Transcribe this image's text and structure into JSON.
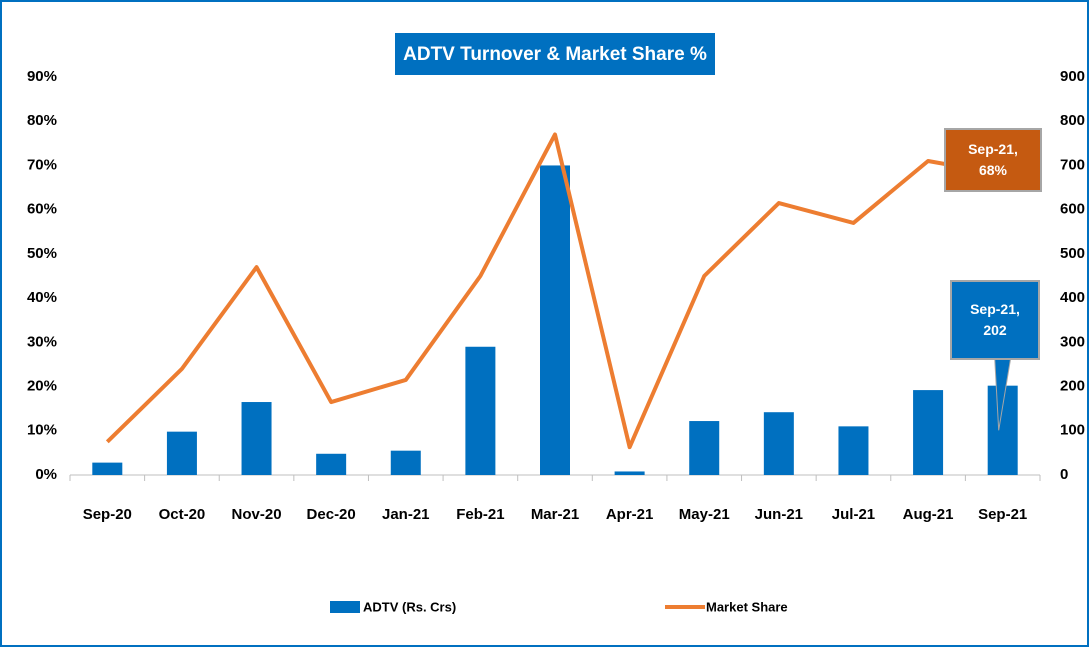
{
  "chart_data": {
    "type": "bar-line",
    "title": "ADTV Turnover & Market Share %",
    "categories": [
      "Sep-20",
      "Oct-20",
      "Nov-20",
      "Dec-20",
      "Jan-21",
      "Feb-21",
      "Mar-21",
      "Apr-21",
      "May-21",
      "Jun-21",
      "Jul-21",
      "Aug-21",
      "Sep-21"
    ],
    "series": [
      {
        "name": "ADTV (Rs. Crs)",
        "type": "bar",
        "axis": "y2",
        "color": "#0070c0",
        "values": [
          28,
          98,
          165,
          48,
          55,
          290,
          700,
          8,
          122,
          142,
          110,
          192,
          202
        ],
        "value_labels": [
          null,
          null,
          null,
          null,
          null,
          null,
          null,
          null,
          null,
          null,
          null,
          null,
          "Sep-21, 202"
        ]
      },
      {
        "name": "Market Share",
        "type": "line",
        "axis": "y",
        "color": "#ed7d31",
        "values": [
          7.5,
          24,
          47,
          16.5,
          21.5,
          45,
          77,
          6.3,
          45,
          61.5,
          57,
          71,
          68
        ],
        "value_labels": [
          null,
          null,
          null,
          null,
          null,
          null,
          null,
          null,
          null,
          null,
          null,
          null,
          "Sep-21, 68%"
        ]
      }
    ],
    "ylim": [
      0,
      90
    ],
    "yticks": [
      {
        "value": 0,
        "label": "0%"
      },
      {
        "value": 10,
        "label": "10%"
      },
      {
        "value": 20,
        "label": "20%"
      },
      {
        "value": 30,
        "label": "30%"
      },
      {
        "value": 40,
        "label": "40%"
      },
      {
        "value": 50,
        "label": "50%"
      },
      {
        "value": 60,
        "label": "60%"
      },
      {
        "value": 70,
        "label": "70%"
      },
      {
        "value": 80,
        "label": "80%"
      },
      {
        "value": 90,
        "label": "90%"
      }
    ],
    "y2lim": [
      0,
      900
    ],
    "y2ticks": [
      0,
      100,
      200,
      300,
      400,
      500,
      600,
      700,
      800,
      900
    ],
    "legend": "bottom"
  }
}
